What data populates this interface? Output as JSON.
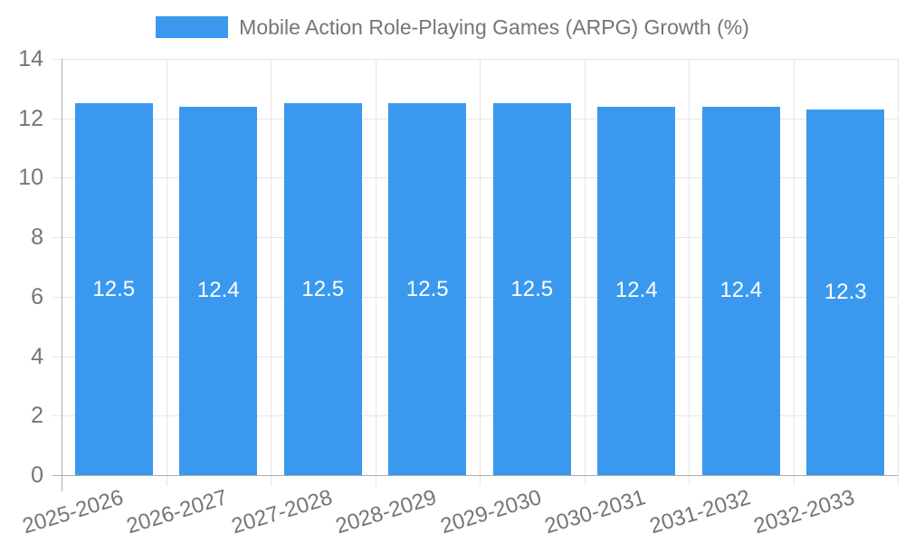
{
  "chart_data": {
    "type": "bar",
    "title": "Mobile Action Role-Playing Games (ARPG) Growth (%)",
    "categories": [
      "2025-2026",
      "2026-2027",
      "2027-2028",
      "2028-2029",
      "2029-2030",
      "2030-2031",
      "2031-2032",
      "2032-2033"
    ],
    "values": [
      12.5,
      12.4,
      12.5,
      12.5,
      12.5,
      12.4,
      12.4,
      12.3
    ],
    "value_labels": [
      "12.5",
      "12.4",
      "12.5",
      "12.5",
      "12.5",
      "12.4",
      "12.4",
      "12.3"
    ],
    "xlabel": "",
    "ylabel": "",
    "ylim": [
      0,
      14
    ],
    "yticks": [
      0,
      2,
      4,
      6,
      8,
      10,
      12,
      14
    ],
    "grid": true,
    "legend_position": "top",
    "colors": {
      "bar": "#3A99EE",
      "value_label": "#FFFFFF",
      "gridline": "#E6E6E6",
      "axis_line": "#ACACAC",
      "tick_label": "#757575",
      "legend_text": "#757575"
    }
  }
}
